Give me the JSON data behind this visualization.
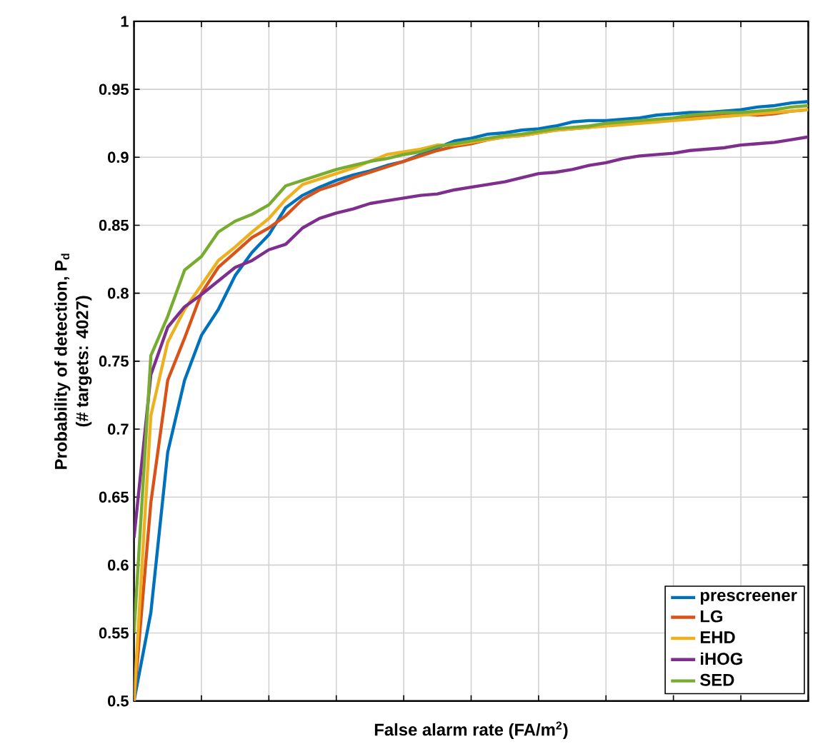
{
  "chart_data": {
    "type": "line",
    "xlabel": "False alarm rate (FA/m$^{2}$)",
    "ylabel": "Probability of detection, P$_{d}$",
    "annotations": [
      "(# targets: 4027)"
    ],
    "categories": [
      null,
      null,
      null,
      null,
      null,
      null,
      null,
      null,
      null,
      null,
      null,
      null,
      null,
      null,
      null,
      null,
      null,
      null,
      null,
      null,
      null,
      null,
      null,
      null,
      null,
      null,
      null,
      null,
      null,
      null,
      null,
      null,
      null,
      null,
      null,
      null,
      null,
      null,
      null,
      null,
      null
    ],
    "ylim": [
      0.5,
      1
    ],
    "yticks": [
      0.5,
      0.55,
      0.6,
      0.65,
      0.7,
      0.75,
      0.8,
      0.85,
      0.9,
      0.95,
      1
    ],
    "grid": true,
    "legend": "bottom right",
    "tick_labels": "y",
    "line_style": "solid",
    "marker": "none",
    "series": [
      {
        "name": "prescreener",
        "color": "#0072bd",
        "values": [
          0.5,
          0.565,
          0.683,
          0.736,
          0.769,
          0.788,
          0.813,
          0.83,
          0.843,
          0.863,
          0.872,
          0.878,
          0.883,
          0.887,
          0.89,
          0.894,
          0.897,
          0.902,
          0.907,
          0.912,
          0.914,
          0.917,
          0.918,
          0.92,
          0.921,
          0.923,
          0.926,
          0.927,
          0.927,
          0.928,
          0.929,
          0.931,
          0.932,
          0.933,
          0.933,
          0.934,
          0.935,
          0.937,
          0.938,
          0.94,
          0.941
        ]
      },
      {
        "name": "LG",
        "color": "#d95319",
        "values": [
          0.5,
          0.646,
          0.736,
          0.767,
          0.8,
          0.819,
          0.83,
          0.841,
          0.848,
          0.857,
          0.869,
          0.876,
          0.88,
          0.885,
          0.889,
          0.893,
          0.897,
          0.901,
          0.905,
          0.908,
          0.91,
          0.913,
          0.915,
          0.916,
          0.918,
          0.92,
          0.921,
          0.922,
          0.924,
          0.925,
          0.926,
          0.927,
          0.928,
          0.93,
          0.931,
          0.932,
          0.932,
          0.931,
          0.932,
          0.934,
          0.935
        ]
      },
      {
        "name": "EHD",
        "color": "#edb120",
        "values": [
          0.5,
          0.71,
          0.764,
          0.788,
          0.806,
          0.824,
          0.834,
          0.845,
          0.855,
          0.869,
          0.88,
          0.884,
          0.888,
          0.892,
          0.897,
          0.902,
          0.904,
          0.906,
          0.909,
          0.909,
          0.911,
          0.913,
          0.915,
          0.916,
          0.918,
          0.92,
          0.921,
          0.922,
          0.923,
          0.924,
          0.925,
          0.926,
          0.927,
          0.928,
          0.929,
          0.93,
          0.931,
          0.932,
          0.933,
          0.934,
          0.935
        ]
      },
      {
        "name": "iHOG",
        "color": "#7e2f8e",
        "values": [
          0.62,
          0.74,
          0.775,
          0.79,
          0.799,
          0.809,
          0.819,
          0.824,
          0.832,
          0.836,
          0.848,
          0.855,
          0.859,
          0.862,
          0.866,
          0.868,
          0.87,
          0.872,
          0.873,
          0.876,
          0.878,
          0.88,
          0.882,
          0.885,
          0.888,
          0.889,
          0.891,
          0.894,
          0.896,
          0.899,
          0.901,
          0.902,
          0.903,
          0.905,
          0.906,
          0.907,
          0.909,
          0.91,
          0.911,
          0.913,
          0.915
        ]
      },
      {
        "name": "SED",
        "color": "#77ac30",
        "values": [
          0.55,
          0.754,
          0.783,
          0.817,
          0.827,
          0.845,
          0.853,
          0.858,
          0.865,
          0.879,
          0.883,
          0.887,
          0.891,
          0.894,
          0.897,
          0.899,
          0.902,
          0.904,
          0.908,
          0.91,
          0.912,
          0.914,
          0.916,
          0.917,
          0.919,
          0.921,
          0.922,
          0.923,
          0.925,
          0.926,
          0.927,
          0.928,
          0.929,
          0.931,
          0.932,
          0.933,
          0.933,
          0.934,
          0.935,
          0.937,
          0.938
        ]
      }
    ]
  }
}
